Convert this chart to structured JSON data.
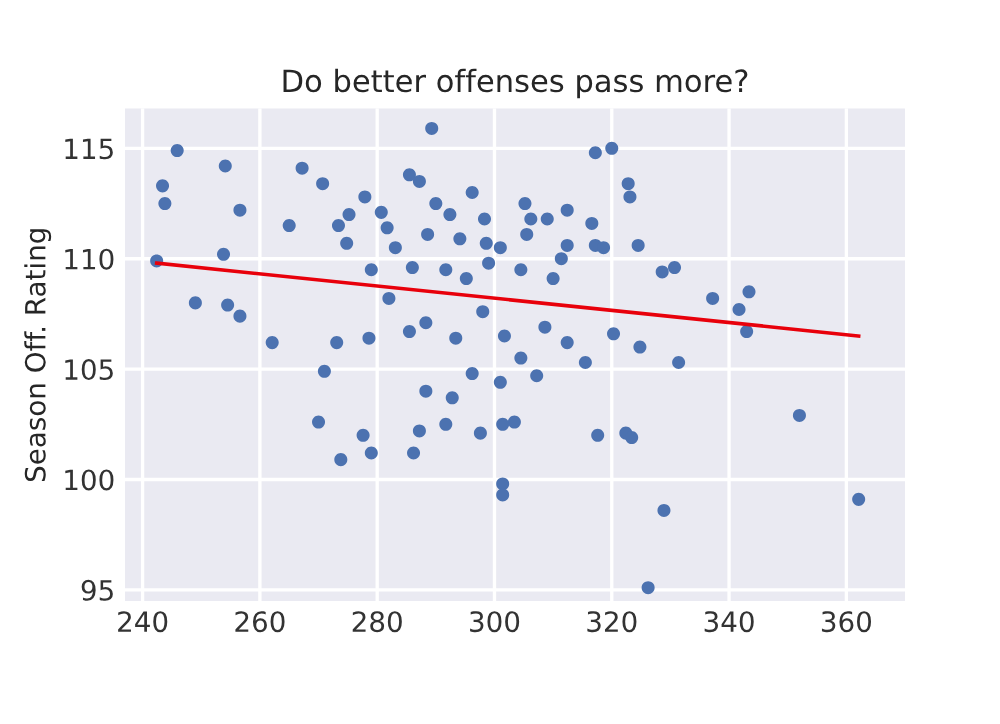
{
  "chart_data": {
    "type": "scatter",
    "title": "Do better offenses pass more?",
    "ylabel": "Season Off. Rating",
    "xlim": [
      237,
      370
    ],
    "ylim": [
      94.5,
      116.8
    ],
    "xticks": [
      240,
      260,
      280,
      300,
      320,
      340,
      360
    ],
    "yticks": [
      95,
      100,
      105,
      110,
      115
    ],
    "grid": true,
    "marker": "circle",
    "series": [
      {
        "color": "#4c72b0",
        "x": [
          245.9,
          243.4,
          243.8,
          242.4,
          254.1,
          256.6,
          253.8,
          267.2,
          265,
          270.7,
          275.2,
          273.4,
          274.8,
          277.9,
          280.7,
          289.3,
          281.7,
          283.1,
          285.5,
          287.2,
          290,
          288.6,
          292.4,
          294.1,
          296.2,
          298.3,
          298.6,
          299,
          301,
          305.2,
          306.2,
          305.5,
          309,
          311.4,
          312.4,
          317.2,
          320,
          322.8,
          323.1,
          312.4,
          316.6,
          317.2,
          318.6,
          324.5,
          328.6,
          330.7,
          343.4,
          341.7,
          291.7,
          286,
          279,
          295.2,
          304.5,
          310,
          249,
          254.5,
          256.6,
          262.1,
          271,
          273.1,
          278.6,
          282,
          285.5,
          288.3,
          293.4,
          298,
          301.7,
          304.5,
          308.6,
          312.4,
          315.5,
          320.3,
          324.8,
          331.4,
          337.2,
          343,
          352,
          296.2,
          301,
          307.2,
          270,
          292.8,
          291.7,
          288.3,
          277.6,
          273.8,
          279,
          286.2,
          287.2,
          297.6,
          303.4,
          301.4,
          317.6,
          322.4,
          323.4,
          301.4,
          301.4,
          328.9,
          362.1,
          326.2
        ],
        "values": [
          114.9,
          113.3,
          112.5,
          109.9,
          114.2,
          112.2,
          110.2,
          114.1,
          111.5,
          113.4,
          112,
          111.5,
          110.7,
          112.8,
          112.1,
          115.9,
          111.4,
          110.5,
          113.8,
          113.5,
          112.5,
          111.1,
          112,
          110.9,
          113,
          111.8,
          110.7,
          109.8,
          110.5,
          112.5,
          111.8,
          111.1,
          111.8,
          110,
          110.6,
          114.8,
          115,
          113.4,
          112.8,
          112.2,
          111.6,
          110.6,
          110.5,
          110.6,
          109.4,
          109.6,
          108.5,
          107.7,
          109.5,
          109.6,
          109.5,
          109.1,
          109.5,
          109.1,
          108,
          107.9,
          107.4,
          106.2,
          104.9,
          106.2,
          106.4,
          108.2,
          106.7,
          107.1,
          106.4,
          107.6,
          106.5,
          105.5,
          106.9,
          106.2,
          105.3,
          106.6,
          106,
          105.3,
          108.2,
          106.7,
          102.9,
          104.8,
          104.4,
          104.7,
          102.6,
          103.7,
          102.5,
          104,
          102,
          100.9,
          101.2,
          101.2,
          102.2,
          102.1,
          102.6,
          102.5,
          102,
          102.1,
          101.9,
          99.8,
          99.3,
          98.6,
          99.1,
          95.1
        ]
      },
      {
        "type": "line",
        "color": "#e8000b",
        "marker": "none",
        "x": [
          242.4,
          362.1
        ],
        "values": [
          109.8,
          106.5
        ]
      }
    ]
  }
}
